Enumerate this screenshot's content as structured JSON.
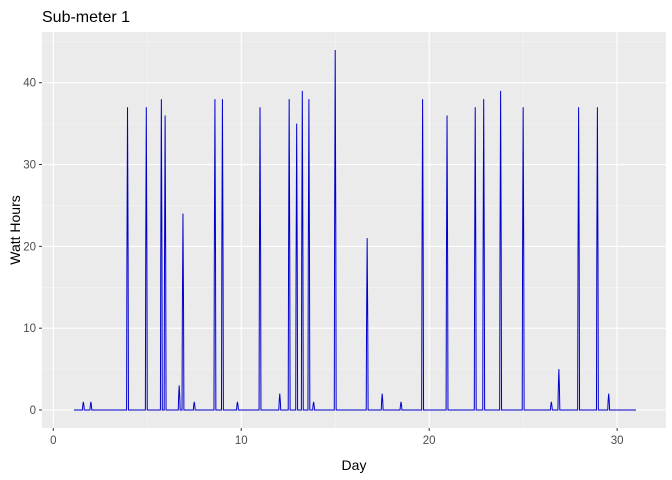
{
  "chart_data": {
    "type": "line",
    "title": "Sub-meter 1",
    "xlabel": "Day",
    "ylabel": "Watt Hours",
    "xlim": [
      -0.6,
      32.6
    ],
    "ylim": [
      -2.2,
      46.2
    ],
    "x_ticks": [
      0,
      10,
      20,
      30
    ],
    "y_ticks": [
      0,
      10,
      20,
      30,
      40
    ],
    "grid": true,
    "legend": "none",
    "colors": {
      "panel": "#ebebeb",
      "grid_major": "#ffffff",
      "grid_minor": "#f5f5f5",
      "line": "#0000cc",
      "tick": "#333333"
    },
    "series": [
      {
        "spikes": [
          {
            "x": 1.6,
            "y": 1
          },
          {
            "x": 2.0,
            "y": 1
          },
          {
            "x": 3.95,
            "y": 37
          },
          {
            "x": 4.95,
            "y": 37
          },
          {
            "x": 5.75,
            "y": 38
          },
          {
            "x": 5.95,
            "y": 36
          },
          {
            "x": 6.7,
            "y": 3
          },
          {
            "x": 6.9,
            "y": 24
          },
          {
            "x": 7.5,
            "y": 1
          },
          {
            "x": 8.6,
            "y": 38
          },
          {
            "x": 9.0,
            "y": 38
          },
          {
            "x": 9.8,
            "y": 1
          },
          {
            "x": 11.0,
            "y": 37
          },
          {
            "x": 12.05,
            "y": 2
          },
          {
            "x": 12.55,
            "y": 38
          },
          {
            "x": 12.95,
            "y": 35
          },
          {
            "x": 13.25,
            "y": 39
          },
          {
            "x": 13.6,
            "y": 38
          },
          {
            "x": 13.85,
            "y": 1
          },
          {
            "x": 15.0,
            "y": 44
          },
          {
            "x": 16.7,
            "y": 21
          },
          {
            "x": 17.5,
            "y": 2
          },
          {
            "x": 18.5,
            "y": 1
          },
          {
            "x": 19.65,
            "y": 38
          },
          {
            "x": 20.95,
            "y": 36
          },
          {
            "x": 22.45,
            "y": 37
          },
          {
            "x": 22.9,
            "y": 38
          },
          {
            "x": 23.8,
            "y": 39
          },
          {
            "x": 25.0,
            "y": 37
          },
          {
            "x": 26.5,
            "y": 1
          },
          {
            "x": 26.9,
            "y": 5
          },
          {
            "x": 27.95,
            "y": 37
          },
          {
            "x": 28.95,
            "y": 37
          },
          {
            "x": 29.55,
            "y": 2
          }
        ]
      }
    ]
  }
}
